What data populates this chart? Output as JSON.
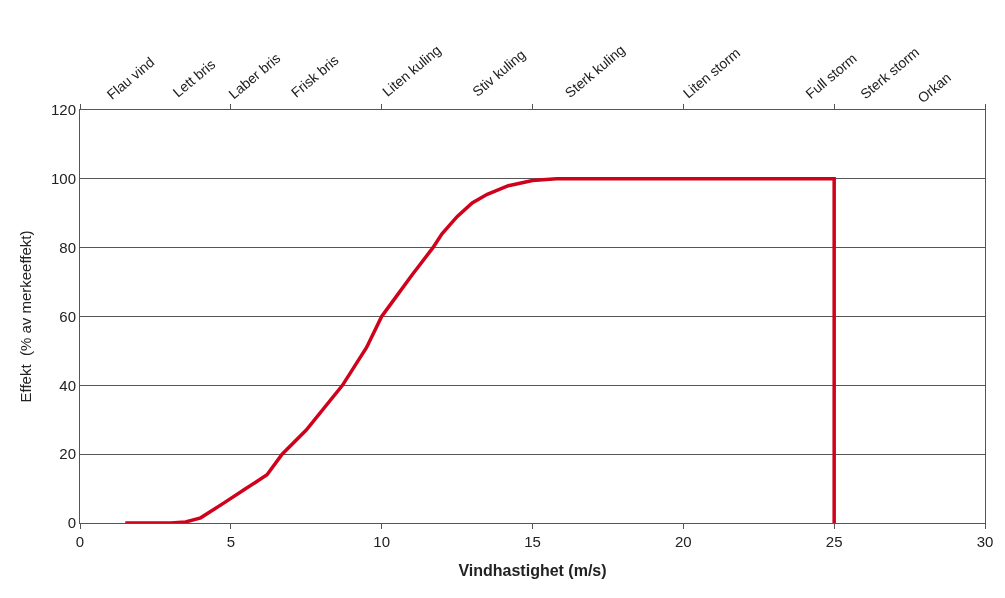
{
  "chart_data": {
    "type": "line",
    "xlabel": "Vindhastighet (m/s)",
    "ylabel": "Effekt  (% av merkeeffekt)",
    "x": [
      1.5,
      3,
      3.5,
      4,
      4.8,
      5.5,
      6.2,
      6.7,
      7.5,
      8.7,
      9.5,
      10,
      10.5,
      11,
      11.7,
      12,
      12.5,
      13,
      13.5,
      14.2,
      15,
      15.8,
      25,
      25
    ],
    "series": [
      {
        "color": "#d0021b",
        "values": [
          0,
          0,
          0.3,
          1.5,
          6,
          10,
          14,
          20,
          27,
          40,
          51,
          60,
          66,
          72,
          80,
          84,
          89,
          93,
          95.5,
          98,
          99.5,
          100,
          100,
          0
        ]
      }
    ],
    "xlim": [
      0,
      30
    ],
    "xticks": [
      0,
      5,
      10,
      15,
      20,
      25,
      30
    ],
    "ylim": [
      0,
      120
    ],
    "yticks": [
      0,
      20,
      40,
      60,
      80,
      100,
      120
    ],
    "annotations": [
      "Flau vind",
      "Lett bris",
      "Laber bris",
      "Frisk bris",
      "Liten kuling",
      "Stiv kuling",
      "Sterk kuling",
      "Liten storm",
      "Full storm",
      "Sterk storm",
      "Orkan"
    ],
    "grid": "y",
    "legend": false,
    "marker": "none",
    "line_style": "solid"
  }
}
